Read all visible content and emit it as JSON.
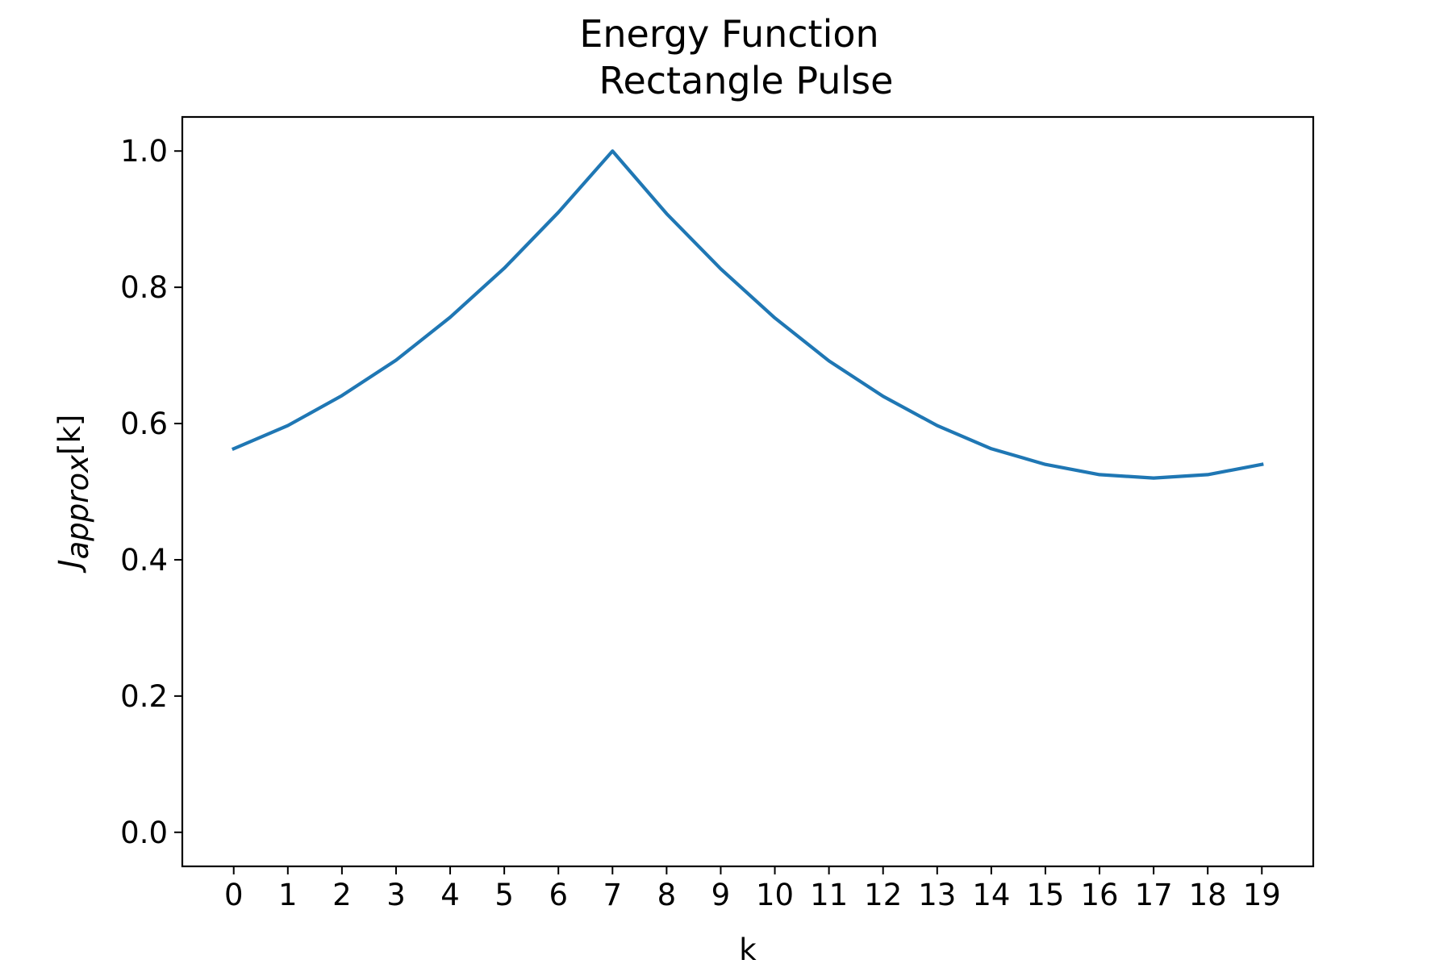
{
  "chart_data": {
    "type": "line",
    "title": "Energy Function",
    "subtitle": "Rectangle Pulse",
    "xlabel": "k",
    "ylabel": {
      "prefix": "J",
      "subscript": "approx",
      "suffix": "[k]"
    },
    "x": [
      0,
      1,
      2,
      3,
      4,
      5,
      6,
      7,
      8,
      9,
      10,
      11,
      12,
      13,
      14,
      15,
      16,
      17,
      18,
      19
    ],
    "series": [
      {
        "color": "#1f77b4",
        "values": [
          0.563,
          0.597,
          0.641,
          0.693,
          0.756,
          0.828,
          0.91,
          1.0,
          0.908,
          0.827,
          0.755,
          0.692,
          0.64,
          0.597,
          0.563,
          0.54,
          0.525,
          0.52,
          0.525,
          0.54
        ]
      }
    ],
    "xticks": [
      "0",
      "1",
      "2",
      "3",
      "4",
      "5",
      "6",
      "7",
      "8",
      "9",
      "10",
      "11",
      "12",
      "13",
      "14",
      "15",
      "16",
      "17",
      "18",
      "19"
    ],
    "yticks": [
      {
        "value": 0.0,
        "label": "0.0"
      },
      {
        "value": 0.2,
        "label": "0.2"
      },
      {
        "value": 0.4,
        "label": "0.4"
      },
      {
        "value": 0.6,
        "label": "0.6"
      },
      {
        "value": 0.8,
        "label": "0.8"
      },
      {
        "value": 1.0,
        "label": "1.0"
      }
    ],
    "xlim": [
      -0.95,
      19.95
    ],
    "ylim": [
      -0.05,
      1.05
    ],
    "grid": false,
    "legend": "none"
  }
}
